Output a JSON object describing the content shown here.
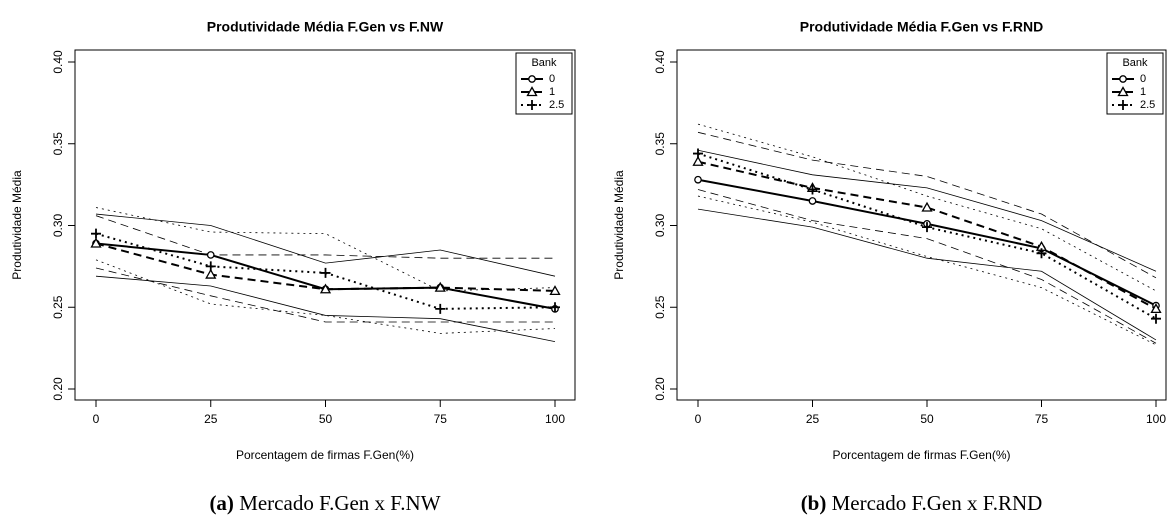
{
  "chart_data": [
    {
      "type": "line",
      "title": "Produtividade Média F.Gen vs F.NW",
      "xlabel": "Porcentagem de firmas F.Gen(%)",
      "ylabel": "Produtividade Média",
      "x": [
        0,
        25,
        50,
        75,
        100
      ],
      "xlim": [
        0,
        100
      ],
      "xticks": [
        0,
        25,
        50,
        75,
        100
      ],
      "ylim": [
        0.2,
        0.4
      ],
      "yticks": [
        {
          "value": 0.2,
          "label": "0.20"
        },
        0.25,
        {
          "value": 0.3,
          "label": "0.30"
        },
        0.35,
        {
          "value": 0.4,
          "label": "0.40"
        }
      ],
      "legend_title": "Bank",
      "legend": "top-right",
      "series": [
        {
          "name": "0",
          "color": "#000000",
          "style": "solid",
          "marker": "circle",
          "values": [
            0.289,
            0.282,
            0.261,
            0.262,
            0.249
          ],
          "bands": [
            [
              0.307,
              0.3,
              0.277,
              0.285,
              0.269
            ],
            [
              0.269,
              0.263,
              0.245,
              0.243,
              0.229
            ]
          ]
        },
        {
          "name": "1",
          "color": "#000000",
          "style": "dashed",
          "marker": "triangle",
          "values": [
            0.289,
            0.27,
            0.261,
            0.262,
            0.26
          ],
          "bands": [
            [
              0.306,
              0.282,
              0.282,
              0.28,
              0.28
            ],
            [
              0.274,
              0.257,
              0.241,
              0.241,
              0.241
            ]
          ]
        },
        {
          "name": "2.5",
          "color": "#000000",
          "style": "dotted",
          "marker": "plus",
          "values": [
            0.295,
            0.275,
            0.271,
            0.249,
            0.25
          ],
          "bands": [
            [
              0.311,
              0.296,
              0.295,
              0.26,
              0.262
            ],
            [
              0.279,
              0.252,
              0.245,
              0.234,
              0.237
            ]
          ]
        }
      ],
      "caption_label": "(a)",
      "caption": "Mercado F.Gen x F.NW"
    },
    {
      "type": "line",
      "title": "Produtividade Média F.Gen vs F.RND",
      "xlabel": "Porcentagem de firmas F.Gen(%)",
      "ylabel": "Produtividade Média",
      "x": [
        0,
        25,
        50,
        75,
        100
      ],
      "xlim": [
        0,
        100
      ],
      "xticks": [
        0,
        25,
        50,
        75,
        100
      ],
      "ylim": [
        0.2,
        0.4
      ],
      "yticks": [
        {
          "value": 0.2,
          "label": "0.20"
        },
        0.25,
        {
          "value": 0.3,
          "label": "0.30"
        },
        0.35,
        {
          "value": 0.4,
          "label": "0.40"
        }
      ],
      "legend_title": "Bank",
      "legend": "top-right",
      "series": [
        {
          "name": "0",
          "color": "#000000",
          "style": "solid",
          "marker": "circle",
          "values": [
            0.328,
            0.315,
            0.301,
            0.286,
            0.251
          ],
          "bands": [
            [
              0.346,
              0.331,
              0.323,
              0.303,
              0.272
            ],
            [
              0.31,
              0.299,
              0.28,
              0.272,
              0.23
            ]
          ]
        },
        {
          "name": "1",
          "color": "#000000",
          "style": "dashed",
          "marker": "triangle",
          "values": [
            0.339,
            0.323,
            0.311,
            0.287,
            0.249
          ],
          "bands": [
            [
              0.357,
              0.34,
              0.33,
              0.307,
              0.268
            ],
            [
              0.322,
              0.303,
              0.292,
              0.267,
              0.228
            ]
          ]
        },
        {
          "name": "2.5",
          "color": "#000000",
          "style": "dotted",
          "marker": "plus",
          "values": [
            0.344,
            0.322,
            0.299,
            0.283,
            0.243
          ],
          "bands": [
            [
              0.362,
              0.342,
              0.318,
              0.298,
              0.26
            ],
            [
              0.318,
              0.302,
              0.281,
              0.262,
              0.227
            ]
          ]
        }
      ],
      "caption_label": "(b)",
      "caption": "Mercado F.Gen x F.RND"
    }
  ]
}
